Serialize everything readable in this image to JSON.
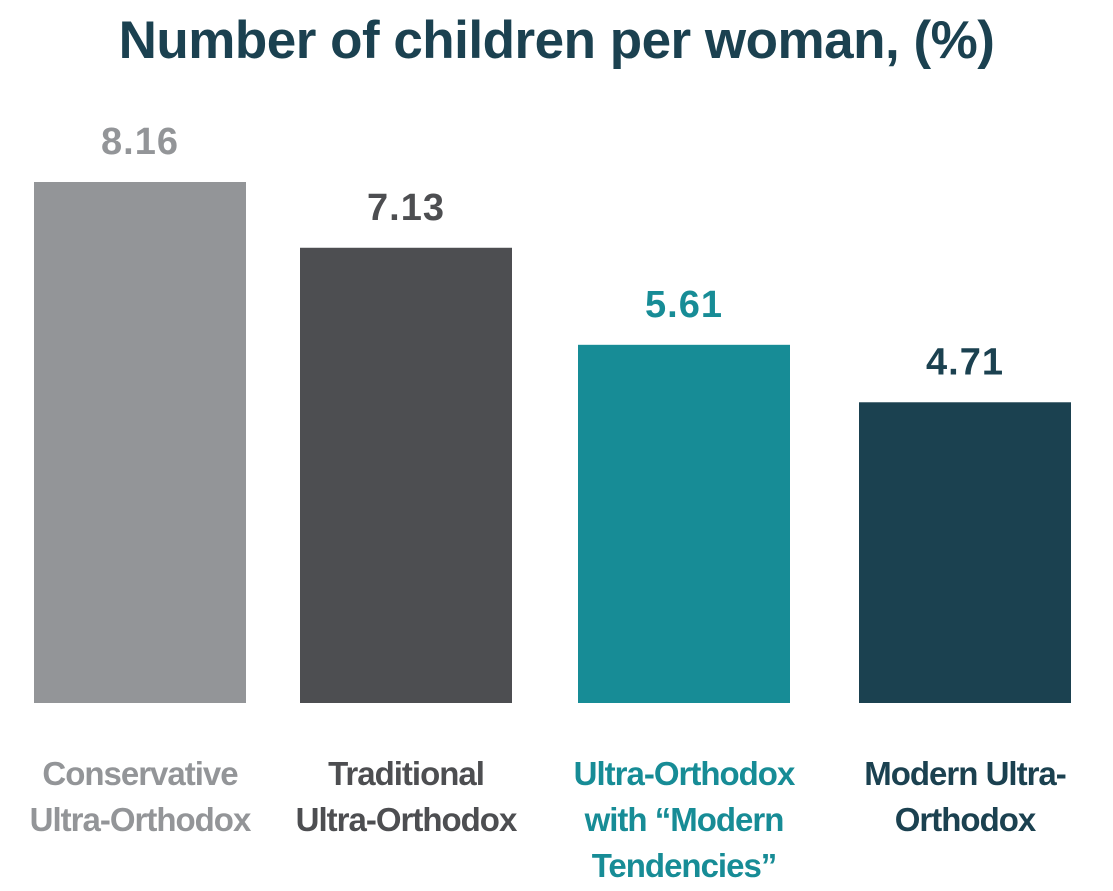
{
  "chart_data": {
    "type": "bar",
    "title": "Number of children per woman, (%)",
    "xlabel": "",
    "ylabel": "",
    "ylim": [
      0,
      8.16
    ],
    "grid": false,
    "legend": "none",
    "categories": [
      [
        "Conservative",
        "Ultra-Orthodox"
      ],
      [
        "Traditional",
        "Ultra-Orthodox"
      ],
      [
        "Ultra-Orthodox",
        "with “Modern",
        "Tendencies”"
      ],
      [
        "Modern Ultra-",
        "Orthodox"
      ]
    ],
    "values": [
      8.16,
      7.13,
      5.61,
      4.71
    ],
    "value_labels": [
      "8.16",
      "7.13",
      "5.61",
      "4.71"
    ],
    "bar_colors": [
      "#939598",
      "#4d4e51",
      "#178c96",
      "#1b4150"
    ],
    "value_label_colors": [
      "#939598",
      "#4d4e51",
      "#178c96",
      "#1b4150"
    ],
    "category_label_colors": [
      "#939598",
      "#4d4e51",
      "#178c96",
      "#1b4150"
    ]
  }
}
